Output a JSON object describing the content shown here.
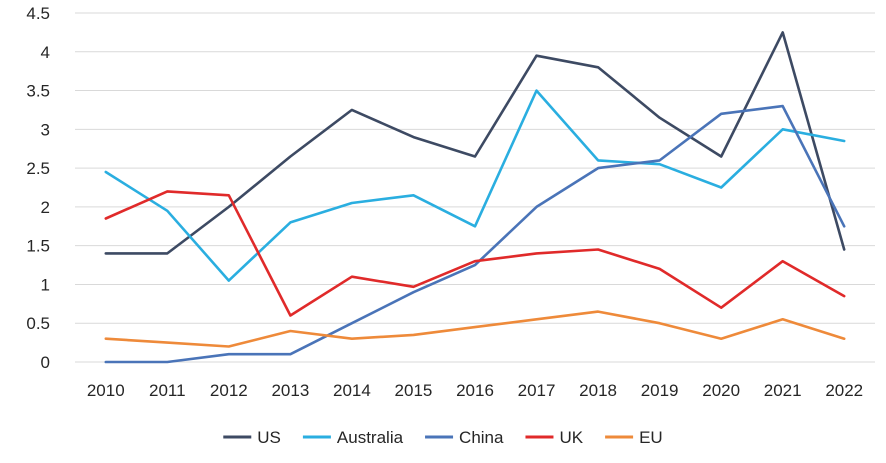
{
  "chart_data": {
    "type": "line",
    "title": "",
    "xlabel": "",
    "ylabel": "",
    "x": [
      "2010",
      "2011",
      "2012",
      "2013",
      "2014",
      "2015",
      "2016",
      "2017",
      "2018",
      "2019",
      "2020",
      "2021",
      "2022"
    ],
    "y_ticks": [
      "0",
      "0.5",
      "1",
      "1.5",
      "2",
      "2.5",
      "3",
      "3.5",
      "4",
      "4.5"
    ],
    "ylim": [
      0,
      4.5
    ],
    "grid": "horizontal",
    "legend_position": "bottom",
    "series": [
      {
        "name": "US",
        "color": "#3d4a63",
        "values": [
          1.4,
          1.4,
          2.0,
          2.65,
          3.25,
          2.9,
          2.65,
          3.95,
          3.8,
          3.15,
          2.65,
          4.25,
          1.45
        ]
      },
      {
        "name": "Australia",
        "color": "#2aaee0",
        "values": [
          2.45,
          1.95,
          1.05,
          1.8,
          2.05,
          2.15,
          1.75,
          3.5,
          2.6,
          2.55,
          2.25,
          3.0,
          2.85
        ]
      },
      {
        "name": "China",
        "color": "#4a74b8",
        "values": [
          0.0,
          0.0,
          0.1,
          0.1,
          0.5,
          0.9,
          1.25,
          2.0,
          2.5,
          2.6,
          3.2,
          3.3,
          1.75
        ]
      },
      {
        "name": "UK",
        "color": "#e02a2a",
        "values": [
          1.85,
          2.2,
          2.15,
          0.6,
          1.1,
          0.97,
          1.3,
          1.4,
          1.45,
          1.2,
          0.7,
          1.3,
          0.85
        ]
      },
      {
        "name": "EU",
        "color": "#ee8a3a",
        "values": [
          0.3,
          0.25,
          0.2,
          0.4,
          0.3,
          0.35,
          0.45,
          0.55,
          0.65,
          0.5,
          0.3,
          0.55,
          0.3
        ]
      }
    ]
  }
}
